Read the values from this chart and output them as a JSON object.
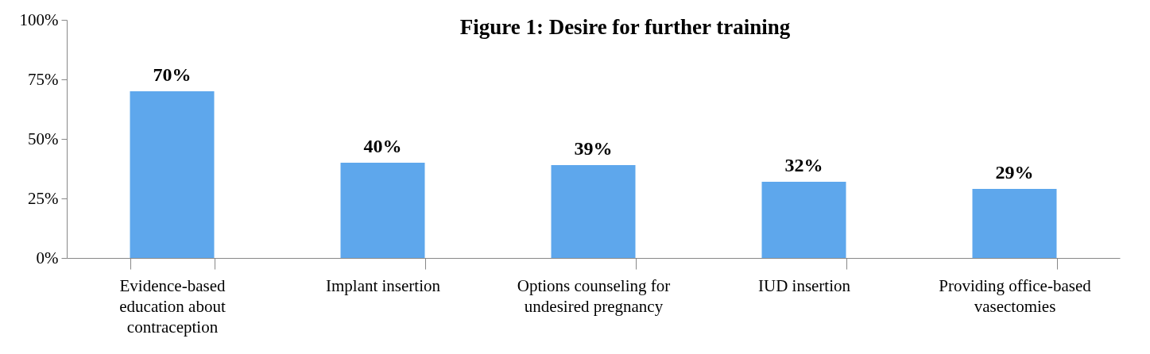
{
  "chart_data": {
    "type": "bar",
    "title": "Figure 1: Desire for further training",
    "categories": [
      "Evidence-based education about contraception",
      "Implant insertion",
      "Options counseling for undesired pregnancy",
      "IUD insertion",
      "Providing office-based vasectomies"
    ],
    "values": [
      70,
      40,
      39,
      32,
      29
    ],
    "value_labels": [
      "70%",
      "40%",
      "39%",
      "32%",
      "29%"
    ],
    "color": "#5ea7ec",
    "ylim": [
      0,
      100
    ],
    "yticks": [
      {
        "value": 0,
        "label": "0%"
      },
      {
        "value": 25,
        "label": "25%"
      },
      {
        "value": 50,
        "label": "50%"
      },
      {
        "value": 75,
        "label": "75%"
      },
      {
        "value": 100,
        "label": "100%"
      }
    ],
    "grid": false
  }
}
